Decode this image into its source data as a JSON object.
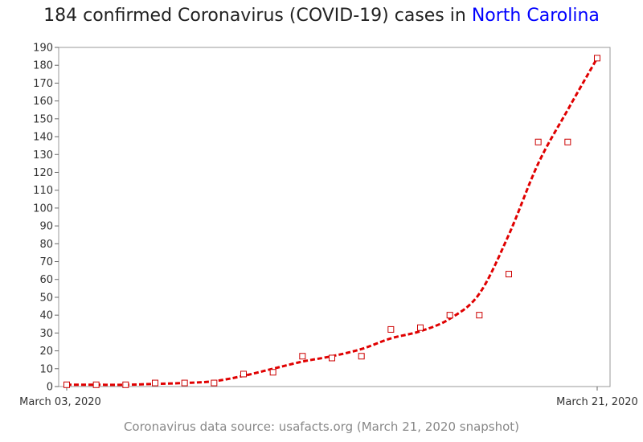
{
  "chart_data": {
    "type": "scatter",
    "title_prefix": "184 confirmed Coronavirus (COVID-19) cases in ",
    "title_highlight": "North Carolina",
    "x_tick_labels": [
      "March 03, 2020",
      "March 21, 2020"
    ],
    "x": [
      "2020-03-03",
      "2020-03-04",
      "2020-03-05",
      "2020-03-06",
      "2020-03-07",
      "2020-03-08",
      "2020-03-09",
      "2020-03-10",
      "2020-03-11",
      "2020-03-12",
      "2020-03-13",
      "2020-03-14",
      "2020-03-15",
      "2020-03-16",
      "2020-03-17",
      "2020-03-18",
      "2020-03-19",
      "2020-03-20",
      "2020-03-21"
    ],
    "values": [
      1,
      1,
      1,
      2,
      2,
      2,
      7,
      8,
      17,
      16,
      17,
      32,
      33,
      40,
      40,
      63,
      137,
      137,
      184
    ],
    "trend_values": [
      1,
      1,
      1,
      1.5,
      2,
      3,
      6,
      10,
      14,
      17,
      21,
      27,
      31,
      38,
      52,
      85,
      125,
      155,
      184
    ],
    "ylim": [
      0,
      190
    ],
    "y_ticks": [
      0,
      10,
      20,
      30,
      40,
      50,
      60,
      70,
      80,
      90,
      100,
      110,
      120,
      130,
      140,
      150,
      160,
      170,
      180,
      190
    ],
    "grid": false,
    "legend": "none",
    "colors": {
      "marker": "#cc0000",
      "trend": "#e00000",
      "highlight": "#0000ff",
      "axis": "#999999"
    }
  },
  "footer": "Coronavirus data source: usafacts.org (March 21, 2020 snapshot)"
}
